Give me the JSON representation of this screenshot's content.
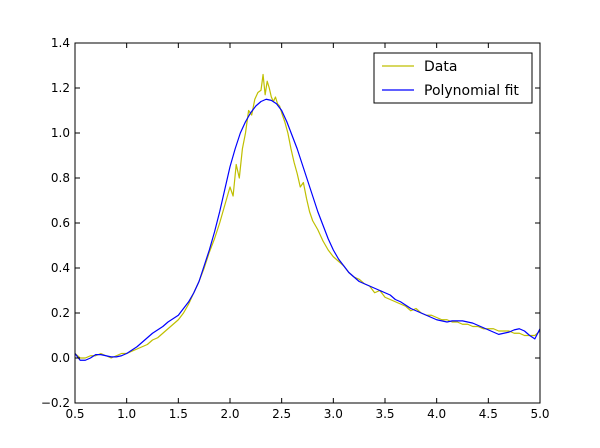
{
  "chart_data": {
    "type": "line",
    "title": "",
    "xlabel": "",
    "ylabel": "",
    "xlim": [
      0.5,
      5.0
    ],
    "ylim": [
      -0.2,
      1.4
    ],
    "grid": false,
    "legend": {
      "placement": "top-right"
    },
    "x_ticks": [
      "0.5",
      "1.0",
      "1.5",
      "2.0",
      "2.5",
      "3.0",
      "3.5",
      "4.0",
      "4.5",
      "5.0"
    ],
    "y_ticks": [
      "−0.2",
      "0.0",
      "0.2",
      "0.4",
      "0.6",
      "0.8",
      "1.0",
      "1.2",
      "1.4"
    ],
    "series": [
      {
        "name": "Data",
        "color": "#bfbf00",
        "x": [
          0.5,
          0.55,
          0.6,
          0.65,
          0.7,
          0.75,
          0.8,
          0.85,
          0.9,
          0.95,
          1.0,
          1.05,
          1.1,
          1.15,
          1.2,
          1.25,
          1.3,
          1.35,
          1.4,
          1.45,
          1.5,
          1.55,
          1.6,
          1.65,
          1.7,
          1.75,
          1.8,
          1.85,
          1.9,
          1.95,
          2.0,
          2.03,
          2.06,
          2.09,
          2.12,
          2.15,
          2.18,
          2.21,
          2.24,
          2.27,
          2.3,
          2.32,
          2.34,
          2.36,
          2.38,
          2.4,
          2.42,
          2.44,
          2.46,
          2.48,
          2.5,
          2.53,
          2.56,
          2.59,
          2.62,
          2.65,
          2.68,
          2.71,
          2.74,
          2.77,
          2.8,
          2.85,
          2.9,
          2.95,
          3.0,
          3.05,
          3.1,
          3.15,
          3.2,
          3.25,
          3.3,
          3.35,
          3.4,
          3.45,
          3.5,
          3.55,
          3.6,
          3.65,
          3.7,
          3.75,
          3.8,
          3.85,
          3.9,
          3.95,
          4.0,
          4.05,
          4.1,
          4.15,
          4.2,
          4.25,
          4.3,
          4.35,
          4.4,
          4.45,
          4.5,
          4.55,
          4.6,
          4.65,
          4.7,
          4.75,
          4.8,
          4.85,
          4.9,
          4.95,
          5.0
        ],
        "y": [
          0.02,
          0.0,
          0.0,
          0.01,
          0.01,
          0.02,
          0.01,
          0.0,
          0.01,
          0.02,
          0.02,
          0.03,
          0.04,
          0.05,
          0.06,
          0.08,
          0.09,
          0.11,
          0.13,
          0.15,
          0.17,
          0.2,
          0.24,
          0.29,
          0.34,
          0.4,
          0.47,
          0.53,
          0.6,
          0.68,
          0.76,
          0.72,
          0.86,
          0.8,
          0.93,
          1.0,
          1.1,
          1.08,
          1.15,
          1.18,
          1.19,
          1.26,
          1.17,
          1.23,
          1.2,
          1.16,
          1.14,
          1.16,
          1.13,
          1.12,
          1.09,
          1.05,
          1.0,
          0.93,
          0.87,
          0.82,
          0.76,
          0.78,
          0.71,
          0.65,
          0.61,
          0.57,
          0.52,
          0.48,
          0.45,
          0.43,
          0.41,
          0.38,
          0.36,
          0.35,
          0.33,
          0.32,
          0.29,
          0.3,
          0.27,
          0.26,
          0.25,
          0.24,
          0.23,
          0.21,
          0.22,
          0.2,
          0.19,
          0.19,
          0.18,
          0.17,
          0.17,
          0.16,
          0.16,
          0.15,
          0.15,
          0.14,
          0.14,
          0.13,
          0.13,
          0.13,
          0.12,
          0.12,
          0.12,
          0.11,
          0.11,
          0.1,
          0.1,
          0.1,
          0.12
        ]
      },
      {
        "name": "Polynomial fit",
        "color": "#0000ff",
        "x": [
          0.5,
          0.55,
          0.6,
          0.65,
          0.7,
          0.75,
          0.8,
          0.85,
          0.9,
          0.95,
          1.0,
          1.05,
          1.1,
          1.15,
          1.2,
          1.25,
          1.3,
          1.35,
          1.4,
          1.45,
          1.5,
          1.55,
          1.6,
          1.65,
          1.7,
          1.75,
          1.8,
          1.85,
          1.9,
          1.95,
          2.0,
          2.05,
          2.1,
          2.15,
          2.2,
          2.25,
          2.3,
          2.35,
          2.4,
          2.45,
          2.5,
          2.55,
          2.6,
          2.65,
          2.7,
          2.75,
          2.8,
          2.85,
          2.9,
          2.95,
          3.0,
          3.05,
          3.1,
          3.15,
          3.2,
          3.25,
          3.3,
          3.35,
          3.4,
          3.45,
          3.5,
          3.55,
          3.6,
          3.65,
          3.7,
          3.75,
          3.8,
          3.85,
          3.9,
          3.95,
          4.0,
          4.05,
          4.1,
          4.15,
          4.2,
          4.25,
          4.3,
          4.35,
          4.4,
          4.45,
          4.5,
          4.55,
          4.6,
          4.65,
          4.7,
          4.75,
          4.8,
          4.85,
          4.9,
          4.95,
          5.0
        ],
        "y": [
          0.02,
          -0.01,
          -0.01,
          0.0,
          0.015,
          0.015,
          0.01,
          0.005,
          0.005,
          0.01,
          0.02,
          0.035,
          0.05,
          0.07,
          0.09,
          0.11,
          0.125,
          0.14,
          0.16,
          0.175,
          0.19,
          0.22,
          0.25,
          0.29,
          0.34,
          0.41,
          0.48,
          0.56,
          0.65,
          0.75,
          0.85,
          0.93,
          1.0,
          1.05,
          1.09,
          1.12,
          1.14,
          1.15,
          1.145,
          1.13,
          1.1,
          1.05,
          0.99,
          0.93,
          0.86,
          0.79,
          0.72,
          0.65,
          0.59,
          0.53,
          0.48,
          0.44,
          0.41,
          0.38,
          0.36,
          0.34,
          0.33,
          0.32,
          0.31,
          0.3,
          0.29,
          0.28,
          0.26,
          0.25,
          0.235,
          0.22,
          0.21,
          0.2,
          0.19,
          0.18,
          0.17,
          0.165,
          0.16,
          0.165,
          0.165,
          0.165,
          0.16,
          0.155,
          0.145,
          0.135,
          0.125,
          0.115,
          0.105,
          0.11,
          0.115,
          0.125,
          0.13,
          0.12,
          0.1,
          0.085,
          0.13
        ]
      }
    ]
  }
}
